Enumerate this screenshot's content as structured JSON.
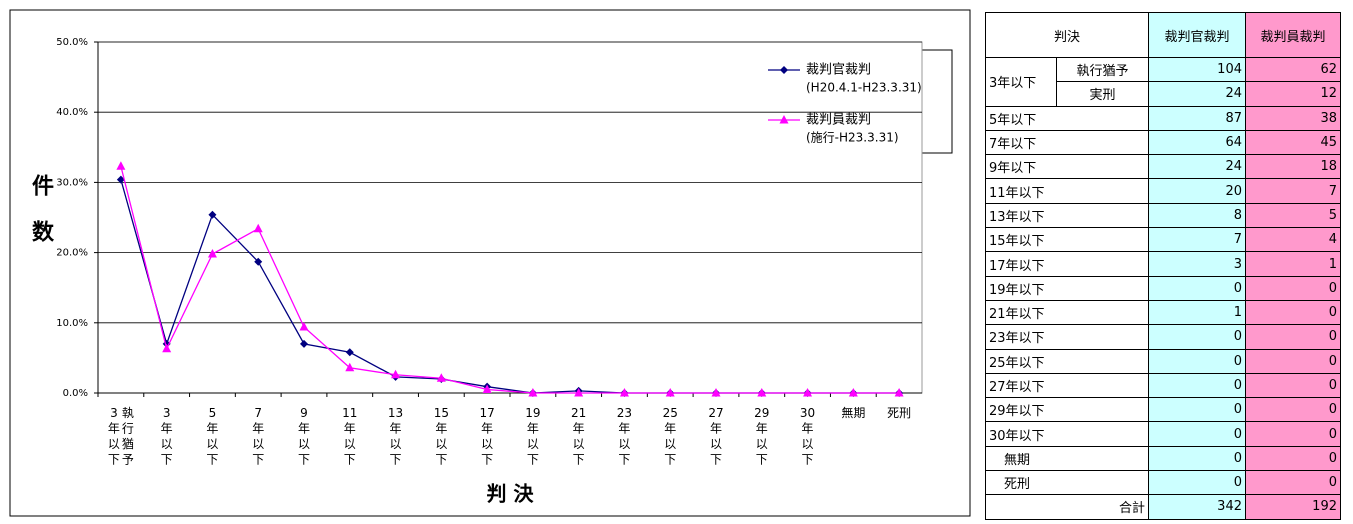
{
  "chart_data": {
    "type": "line",
    "x_label": "判 決",
    "y_label": "件数",
    "categories": [
      "3年以下執行猶予",
      "3年以下",
      "5年以下",
      "7年以下",
      "9年以下",
      "11年以下",
      "13年以下",
      "15年以下",
      "17年以下",
      "19年以下",
      "21年以下",
      "23年以下",
      "25年以下",
      "27年以下",
      "29年以下",
      "30年以下",
      "無期",
      "死刑"
    ],
    "series": [
      {
        "name": "裁判官裁判",
        "period": "(H20.4.1-H23.3.31)",
        "color": "#000080",
        "marker": "diamond",
        "values": [
          30.4,
          7.0,
          25.4,
          18.7,
          7.0,
          5.8,
          2.3,
          2.0,
          0.9,
          0,
          0.3,
          0,
          0,
          0,
          0,
          0,
          0,
          0
        ]
      },
      {
        "name": "裁判員裁判",
        "period": "(施行-H23.3.31)",
        "color": "#ff00ff",
        "marker": "triangle",
        "values": [
          32.3,
          6.3,
          19.8,
          23.4,
          9.4,
          3.6,
          2.6,
          2.1,
          0.5,
          0,
          0,
          0,
          0,
          0,
          0,
          0,
          0,
          0
        ]
      }
    ],
    "ylim": [
      0,
      50
    ],
    "yticks": [
      {
        "value": 0,
        "label": "0.0%"
      },
      {
        "value": 10,
        "label": "10.0%"
      },
      {
        "value": 20,
        "label": "20.0%"
      },
      {
        "value": 30,
        "label": "30.0%"
      },
      {
        "value": 40,
        "label": "40.0%"
      },
      {
        "value": 50,
        "label": "50.0%"
      }
    ],
    "grid": true
  },
  "table": {
    "header": [
      "判決",
      "裁判官裁判",
      "裁判員裁判"
    ],
    "group": "3年以下",
    "rows": [
      [
        "執行猶予",
        104,
        62
      ],
      [
        "実刑",
        24,
        12
      ],
      [
        "5年以下",
        87,
        38
      ],
      [
        "7年以下",
        64,
        45
      ],
      [
        "9年以下",
        24,
        18
      ],
      [
        "11年以下",
        20,
        7
      ],
      [
        "13年以下",
        8,
        5
      ],
      [
        "15年以下",
        7,
        4
      ],
      [
        "17年以下",
        3,
        1
      ],
      [
        "19年以下",
        0,
        0
      ],
      [
        "21年以下",
        1,
        0
      ],
      [
        "23年以下",
        0,
        0
      ],
      [
        "25年以下",
        0,
        0
      ],
      [
        "27年以下",
        0,
        0
      ],
      [
        "29年以下",
        0,
        0
      ],
      [
        "30年以下",
        0,
        0
      ],
      [
        "無期",
        0,
        0
      ],
      [
        "死刑",
        0,
        0
      ]
    ],
    "total": [
      "合計",
      342,
      192
    ]
  }
}
